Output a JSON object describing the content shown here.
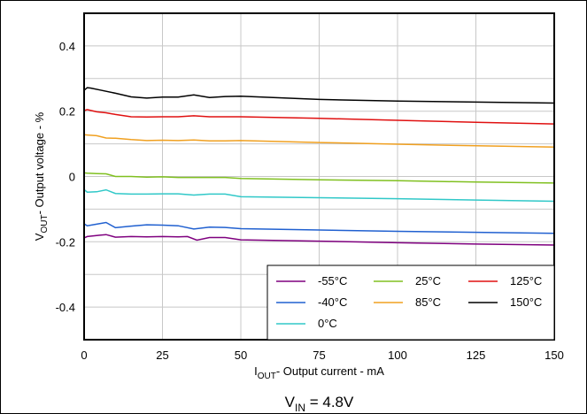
{
  "chart_data": {
    "type": "line",
    "xlabel_main": "I",
    "xlabel_sub": "OUT",
    "xlabel_rest": "- Output current - mA",
    "ylabel_main": "V",
    "ylabel_sub": "OUT",
    "ylabel_rest": "- Output voltage - %",
    "caption_main": "V",
    "caption_sub": "IN",
    "caption_rest": " = 4.8V",
    "xlim": [
      0,
      150
    ],
    "ylim": [
      -0.5,
      0.5
    ],
    "xticks": [
      0,
      25,
      50,
      75,
      100,
      125,
      150
    ],
    "yticks": [
      -0.4,
      -0.2,
      0,
      0.2,
      0.4
    ],
    "ytick_labels": [
      "-0.4",
      "-0.2",
      "0",
      "0.2",
      "0.4"
    ],
    "grid": true,
    "legend_position": "bottom-right",
    "series": [
      {
        "name": "-55°C",
        "color": "#7f007f",
        "x": [
          0,
          1,
          5,
          7,
          10,
          15,
          20,
          25,
          30,
          33,
          36,
          40,
          45,
          50,
          75,
          100,
          125,
          150
        ],
        "y": [
          -0.188,
          -0.184,
          -0.18,
          -0.178,
          -0.186,
          -0.184,
          -0.185,
          -0.184,
          -0.185,
          -0.184,
          -0.195,
          -0.187,
          -0.187,
          -0.194,
          -0.198,
          -0.203,
          -0.207,
          -0.21
        ]
      },
      {
        "name": "-40°C",
        "color": "#2060d0",
        "x": [
          0,
          1,
          4,
          7,
          10,
          15,
          20,
          25,
          30,
          35,
          40,
          45,
          50,
          75,
          100,
          125,
          150
        ],
        "y": [
          -0.145,
          -0.151,
          -0.146,
          -0.141,
          -0.157,
          -0.152,
          -0.148,
          -0.149,
          -0.151,
          -0.161,
          -0.155,
          -0.156,
          -0.16,
          -0.164,
          -0.168,
          -0.171,
          -0.174
        ]
      },
      {
        "name": "0°C",
        "color": "#30c8c8",
        "x": [
          0,
          1,
          4,
          7,
          10,
          15,
          20,
          25,
          30,
          35,
          40,
          45,
          50,
          75,
          100,
          125,
          150
        ],
        "y": [
          -0.04,
          -0.048,
          -0.047,
          -0.041,
          -0.052,
          -0.054,
          -0.054,
          -0.053,
          -0.053,
          -0.057,
          -0.054,
          -0.054,
          -0.062,
          -0.065,
          -0.068,
          -0.072,
          -0.076
        ]
      },
      {
        "name": "25°C",
        "color": "#80c020",
        "x": [
          0,
          1,
          4,
          7,
          10,
          15,
          20,
          25,
          30,
          35,
          40,
          45,
          50,
          75,
          100,
          125,
          150
        ],
        "y": [
          0.011,
          0.01,
          0.009,
          0.008,
          0.0,
          0.0,
          -0.002,
          -0.001,
          -0.003,
          -0.003,
          -0.003,
          -0.003,
          -0.006,
          -0.01,
          -0.013,
          -0.017,
          -0.02
        ]
      },
      {
        "name": "85°C",
        "color": "#f0a020",
        "x": [
          0,
          1,
          4,
          7,
          10,
          15,
          20,
          25,
          30,
          35,
          40,
          45,
          50,
          75,
          100,
          125,
          150
        ],
        "y": [
          0.128,
          0.127,
          0.125,
          0.118,
          0.117,
          0.113,
          0.11,
          0.111,
          0.11,
          0.112,
          0.109,
          0.109,
          0.11,
          0.104,
          0.099,
          0.094,
          0.09
        ]
      },
      {
        "name": "125°C",
        "color": "#e01010",
        "x": [
          0,
          1,
          4,
          7,
          10,
          15,
          20,
          25,
          30,
          35,
          40,
          45,
          50,
          75,
          100,
          125,
          150
        ],
        "y": [
          0.202,
          0.205,
          0.198,
          0.195,
          0.19,
          0.183,
          0.182,
          0.183,
          0.183,
          0.186,
          0.183,
          0.183,
          0.183,
          0.178,
          0.172,
          0.166,
          0.161
        ]
      },
      {
        "name": "150°C",
        "color": "#000000",
        "x": [
          0,
          1,
          2,
          5,
          10,
          15,
          20,
          25,
          30,
          35,
          40,
          45,
          50,
          75,
          100,
          125,
          150
        ],
        "y": [
          0.264,
          0.272,
          0.271,
          0.265,
          0.255,
          0.244,
          0.24,
          0.243,
          0.243,
          0.25,
          0.242,
          0.245,
          0.246,
          0.236,
          0.231,
          0.228,
          0.225
        ]
      }
    ],
    "legend_order": [
      "-55°C",
      "25°C",
      "125°C",
      "-40°C",
      "85°C",
      "150°C",
      "0°C"
    ]
  }
}
